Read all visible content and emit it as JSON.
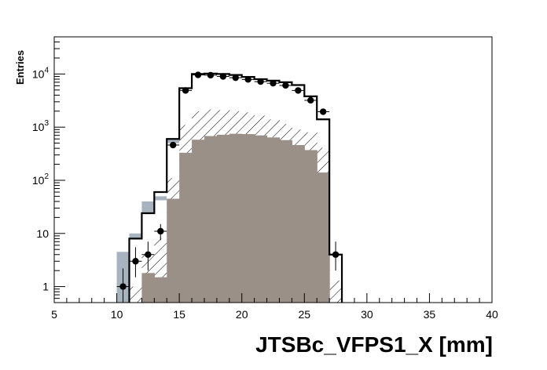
{
  "chart_data": {
    "type": "histogram",
    "title": "",
    "xlabel": "JTSBc_VFPS1_X [mm]",
    "ylabel": "Entries",
    "xlim": [
      5,
      40
    ],
    "ylim": [
      0.5,
      50000
    ],
    "yscale": "log",
    "bin_width": 1,
    "x_ticks": [
      "5",
      "10",
      "15",
      "20",
      "25",
      "30",
      "35",
      "40"
    ],
    "y_ticks": [
      {
        "value": 1,
        "base": "1",
        "exp": ""
      },
      {
        "value": 10,
        "base": "10",
        "exp": ""
      },
      {
        "value": 100,
        "base": "10",
        "exp": "2"
      },
      {
        "value": 1000,
        "base": "10",
        "exp": "3"
      },
      {
        "value": 10000,
        "base": "10",
        "exp": "4"
      }
    ],
    "grid": false,
    "legend": "none",
    "colors": {
      "grey_blue": "#a7b4c0",
      "brown": "#9b9087",
      "data": "#000000",
      "total_line": "#000000",
      "hatch": "#000000"
    },
    "series": [
      {
        "style": "filled-step",
        "color": "grey_blue",
        "bins": [
          {
            "x0": 10,
            "x1": 11,
            "y": 4.5
          },
          {
            "x0": 11,
            "x1": 12,
            "y": 10
          },
          {
            "x0": 12,
            "x1": 13,
            "y": 40
          },
          {
            "x0": 13,
            "x1": 14,
            "y": 50
          },
          {
            "x0": 14,
            "x1": 15,
            "y": 600
          }
        ]
      },
      {
        "style": "white-step",
        "bins": [
          {
            "x0": 11,
            "x1": 12,
            "y": 8
          },
          {
            "x0": 12,
            "x1": 13,
            "y": 24
          },
          {
            "x0": 13,
            "x1": 14,
            "y": 42
          },
          {
            "x0": 14,
            "x1": 15,
            "y": 500
          },
          {
            "x0": 15,
            "x1": 16,
            "y": 5000
          },
          {
            "x0": 16,
            "x1": 17,
            "y": 9500
          },
          {
            "x0": 17,
            "x1": 18,
            "y": 9500
          },
          {
            "x0": 18,
            "x1": 19,
            "y": 9000
          },
          {
            "x0": 19,
            "x1": 20,
            "y": 8500
          },
          {
            "x0": 20,
            "x1": 21,
            "y": 8000
          },
          {
            "x0": 21,
            "x1": 22,
            "y": 7500
          },
          {
            "x0": 22,
            "x1": 23,
            "y": 6800
          },
          {
            "x0": 23,
            "x1": 24,
            "y": 6200
          },
          {
            "x0": 24,
            "x1": 25,
            "y": 5500
          },
          {
            "x0": 25,
            "x1": 26,
            "y": 3500
          },
          {
            "x0": 26,
            "x1": 27,
            "y": 1300
          },
          {
            "x0": 27,
            "x1": 28,
            "y": 4
          }
        ]
      },
      {
        "style": "hatched-step",
        "bins": [
          {
            "x0": 11,
            "x1": 12,
            "y": 1
          },
          {
            "x0": 12,
            "x1": 13,
            "y": 4.5
          },
          {
            "x0": 13,
            "x1": 14,
            "y": 8
          },
          {
            "x0": 14,
            "x1": 15,
            "y": 110
          },
          {
            "x0": 15,
            "x1": 16,
            "y": 1100
          },
          {
            "x0": 16,
            "x1": 17,
            "y": 2000
          },
          {
            "x0": 17,
            "x1": 18,
            "y": 2150
          },
          {
            "x0": 18,
            "x1": 19,
            "y": 2100
          },
          {
            "x0": 19,
            "x1": 20,
            "y": 2000
          },
          {
            "x0": 20,
            "x1": 21,
            "y": 1900
          },
          {
            "x0": 21,
            "x1": 22,
            "y": 1650
          },
          {
            "x0": 22,
            "x1": 23,
            "y": 1400
          },
          {
            "x0": 23,
            "x1": 24,
            "y": 1150
          },
          {
            "x0": 24,
            "x1": 25,
            "y": 900
          },
          {
            "x0": 25,
            "x1": 26,
            "y": 800
          },
          {
            "x0": 26,
            "x1": 27,
            "y": 410
          },
          {
            "x0": 27,
            "x1": 28,
            "y": 1.3
          }
        ]
      },
      {
        "style": "filled-step",
        "color": "brown",
        "bins": [
          {
            "x0": 12,
            "x1": 13,
            "y": 1.8
          },
          {
            "x0": 13,
            "x1": 14,
            "y": 1.5
          },
          {
            "x0": 14,
            "x1": 15,
            "y": 45
          },
          {
            "x0": 15,
            "x1": 16,
            "y": 330
          },
          {
            "x0": 16,
            "x1": 17,
            "y": 580
          },
          {
            "x0": 17,
            "x1": 18,
            "y": 680
          },
          {
            "x0": 18,
            "x1": 19,
            "y": 720
          },
          {
            "x0": 19,
            "x1": 20,
            "y": 750
          },
          {
            "x0": 20,
            "x1": 21,
            "y": 740
          },
          {
            "x0": 21,
            "x1": 22,
            "y": 700
          },
          {
            "x0": 22,
            "x1": 23,
            "y": 640
          },
          {
            "x0": 23,
            "x1": 24,
            "y": 570
          },
          {
            "x0": 24,
            "x1": 25,
            "y": 460
          },
          {
            "x0": 25,
            "x1": 26,
            "y": 370
          },
          {
            "x0": 26,
            "x1": 27,
            "y": 140
          }
        ]
      },
      {
        "style": "step-line",
        "bins": [
          {
            "x0": 11,
            "x1": 12,
            "y": 8
          },
          {
            "x0": 12,
            "x1": 13,
            "y": 24
          },
          {
            "x0": 13,
            "x1": 14,
            "y": 60
          },
          {
            "x0": 14,
            "x1": 15,
            "y": 600
          },
          {
            "x0": 15,
            "x1": 16,
            "y": 5400
          },
          {
            "x0": 16,
            "x1": 17,
            "y": 10000
          },
          {
            "x0": 17,
            "x1": 18,
            "y": 10200
          },
          {
            "x0": 18,
            "x1": 19,
            "y": 10000
          },
          {
            "x0": 19,
            "x1": 20,
            "y": 9600
          },
          {
            "x0": 20,
            "x1": 21,
            "y": 8800
          },
          {
            "x0": 21,
            "x1": 22,
            "y": 8000
          },
          {
            "x0": 22,
            "x1": 23,
            "y": 7500
          },
          {
            "x0": 23,
            "x1": 24,
            "y": 7000
          },
          {
            "x0": 24,
            "x1": 25,
            "y": 6200
          },
          {
            "x0": 25,
            "x1": 26,
            "y": 3800
          },
          {
            "x0": 26,
            "x1": 27,
            "y": 1400
          },
          {
            "x0": 27,
            "x1": 28,
            "y": 4
          }
        ]
      },
      {
        "style": "points-with-errors",
        "points": [
          {
            "x": 10.5,
            "y": 1,
            "lo": 0.4,
            "hi": 2.2
          },
          {
            "x": 11.5,
            "y": 3,
            "lo": 1.5,
            "hi": 5.5
          },
          {
            "x": 12.5,
            "y": 4,
            "lo": 2,
            "hi": 7
          },
          {
            "x": 13.5,
            "y": 11,
            "lo": 7.5,
            "hi": 15
          },
          {
            "x": 14.5,
            "y": 460,
            "lo": 430,
            "hi": 490
          },
          {
            "x": 15.5,
            "y": 4900,
            "lo": 4800,
            "hi": 5000
          },
          {
            "x": 16.5,
            "y": 9600,
            "lo": 9500,
            "hi": 9700
          },
          {
            "x": 17.5,
            "y": 9500,
            "lo": 9400,
            "hi": 9600
          },
          {
            "x": 18.5,
            "y": 9000,
            "lo": 8900,
            "hi": 9100
          },
          {
            "x": 19.5,
            "y": 8500,
            "lo": 8400,
            "hi": 8600
          },
          {
            "x": 20.5,
            "y": 7900,
            "lo": 7800,
            "hi": 8000
          },
          {
            "x": 21.5,
            "y": 7200,
            "lo": 7100,
            "hi": 7300
          },
          {
            "x": 22.5,
            "y": 6700,
            "lo": 6600,
            "hi": 6800
          },
          {
            "x": 23.5,
            "y": 6100,
            "lo": 6000,
            "hi": 6200
          },
          {
            "x": 24.5,
            "y": 4900,
            "lo": 4800,
            "hi": 5000
          },
          {
            "x": 25.5,
            "y": 3200,
            "lo": 3100,
            "hi": 3300
          },
          {
            "x": 26.5,
            "y": 1950,
            "lo": 1900,
            "hi": 2000
          },
          {
            "x": 27.5,
            "y": 4,
            "lo": 2,
            "hi": 7
          }
        ]
      }
    ]
  }
}
